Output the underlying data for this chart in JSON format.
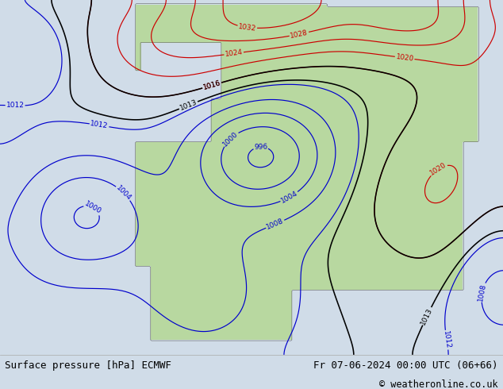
{
  "title_left": "Surface pressure [hPa] ECMWF",
  "title_right": "Fr 07-06-2024 00:00 UTC (06+66)",
  "copyright": "© weatheronline.co.uk",
  "bg_color": "#d0dce8",
  "land_color": "#b8d8a0",
  "land_gray_color": "#b0b0b0",
  "figsize": [
    6.34,
    4.9
  ],
  "dpi": 100,
  "bottom_bar_color": "#ffffff",
  "bottom_bar_height": 0.088,
  "font_color_black": "#000000",
  "contour_black_color": "#000000",
  "contour_blue_color": "#0000cc",
  "contour_red_color": "#cc0000",
  "label_fontsize": 6.5,
  "title_fontsize": 9
}
